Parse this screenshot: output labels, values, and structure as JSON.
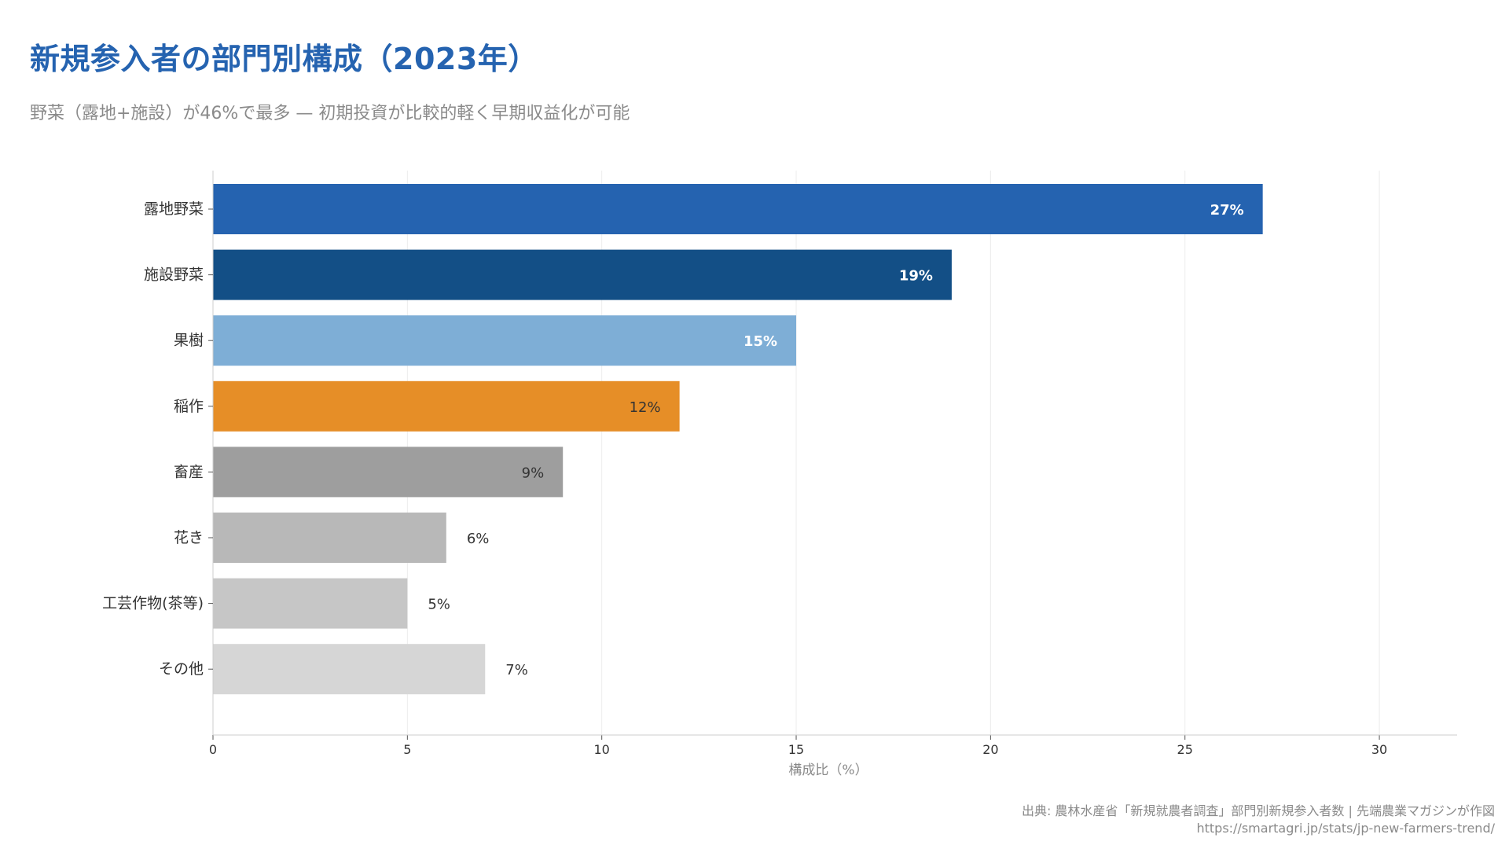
{
  "title": "新規参入者の部門別構成（2023年）",
  "subtitle": "野菜（露地+施設）が46%で最多 — 初期投資が比較的軽く早期収益化が可能",
  "source": {
    "line1": "出典: 農林水産省「新規就農者調査」部門別新規参入者数 | 先端農業マガジンが作図",
    "line2": "https://smartagri.jp/stats/jp-new-farmers-trend/"
  },
  "chart_data": {
    "type": "bar",
    "orientation": "horizontal",
    "categories": [
      "露地野菜",
      "施設野菜",
      "果樹",
      "稲作",
      "畜産",
      "花き",
      "工芸作物(茶等)",
      "その他"
    ],
    "values": [
      27,
      19,
      15,
      12,
      9,
      6,
      5,
      7
    ],
    "value_labels": [
      "27%",
      "19%",
      "15%",
      "12%",
      "9%",
      "6%",
      "5%",
      "7%"
    ],
    "colors": [
      "#2563b0",
      "#134f86",
      "#7eaed6",
      "#e68e27",
      "#9e9e9e",
      "#b8b8b8",
      "#c6c6c6",
      "#d6d6d6"
    ],
    "label_colors": [
      "#ffffff",
      "#ffffff",
      "#ffffff",
      "#333333",
      "#333333",
      "#333333",
      "#333333",
      "#333333"
    ],
    "label_inside": [
      true,
      true,
      true,
      true,
      true,
      false,
      false,
      false
    ],
    "xlabel": "構成比（%）",
    "xlim": [
      0,
      32
    ],
    "xticks": [
      0,
      5,
      10,
      15,
      20,
      25,
      30
    ],
    "grid": true
  }
}
